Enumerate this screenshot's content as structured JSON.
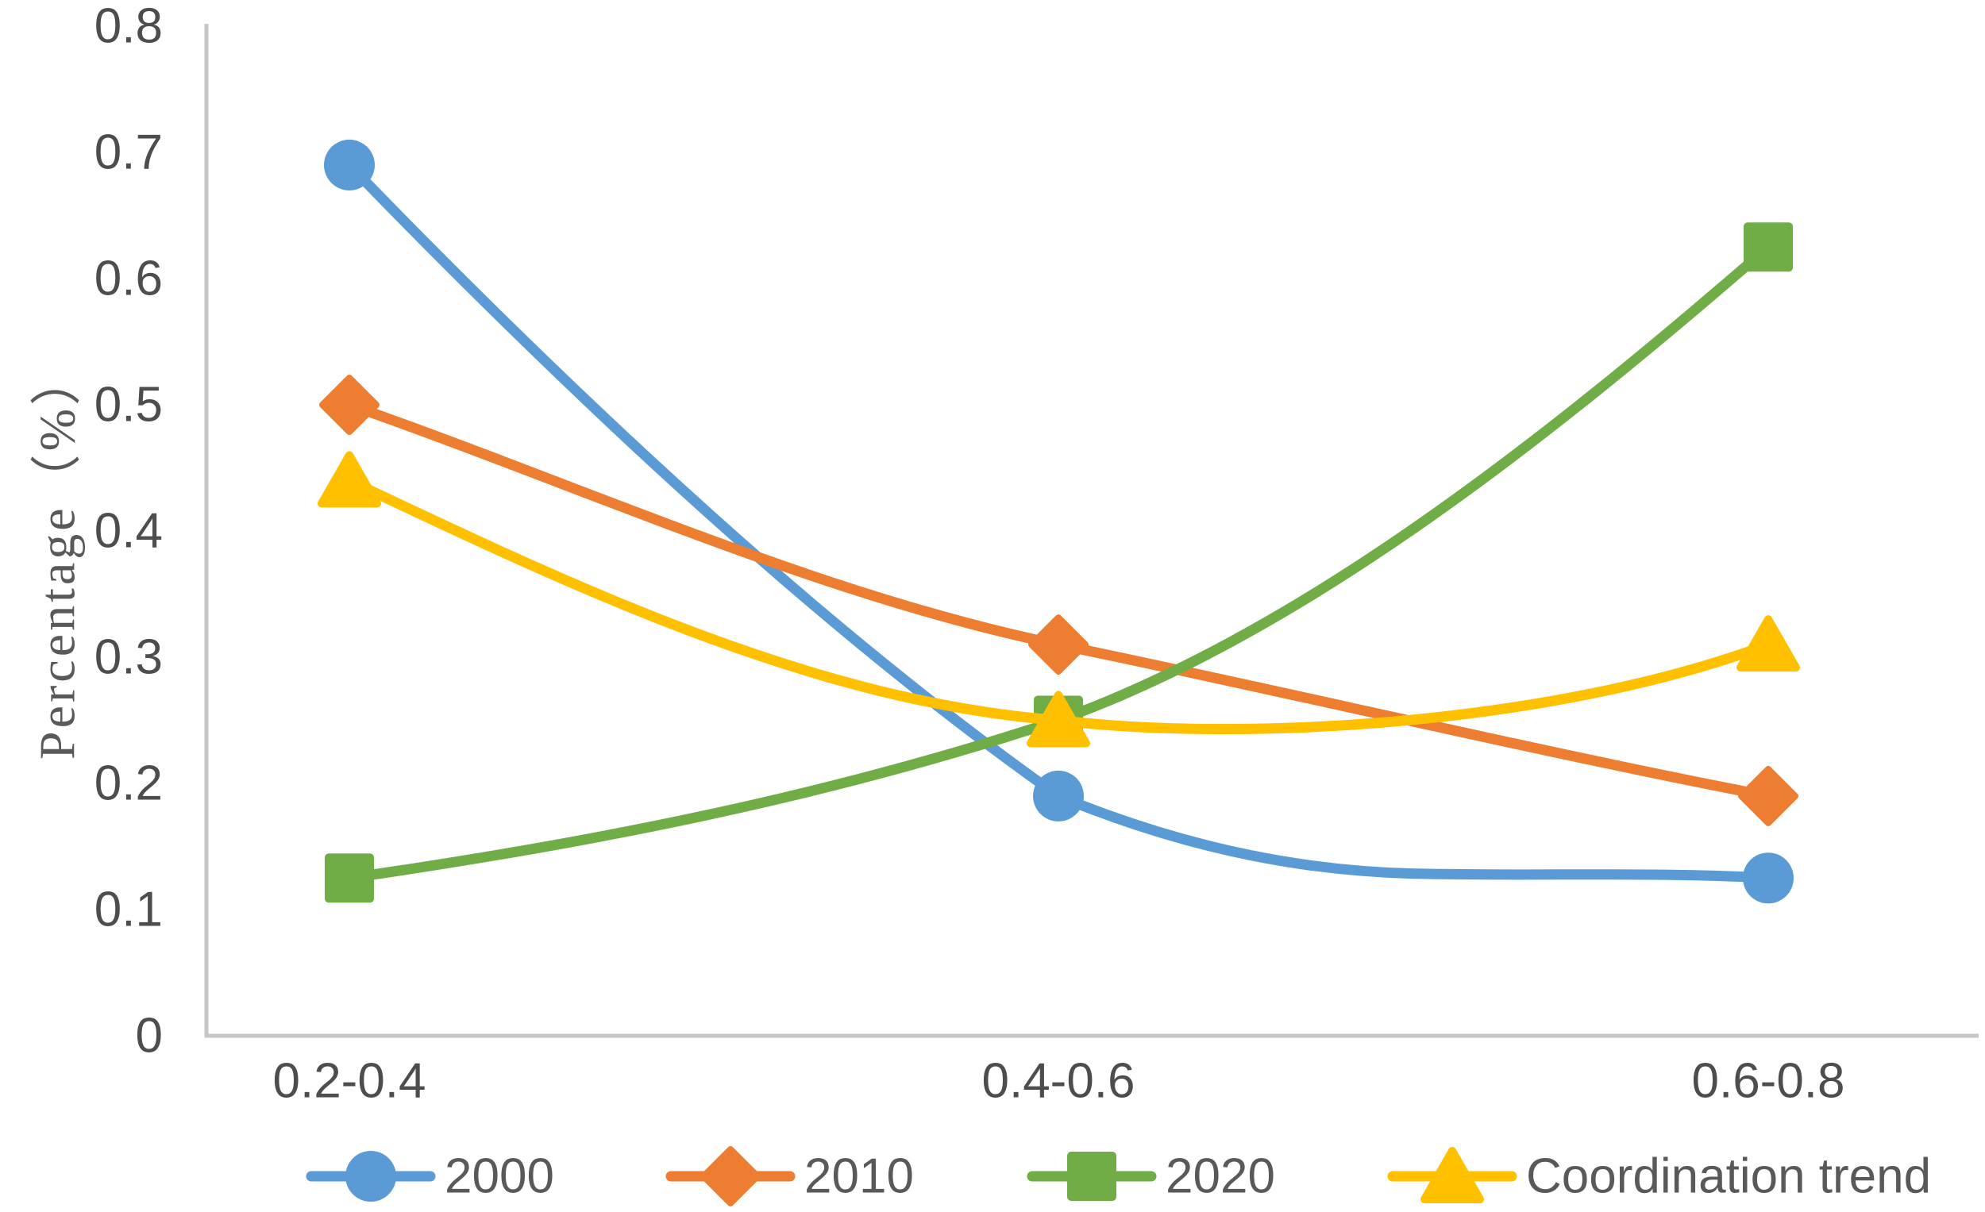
{
  "chart_data": {
    "type": "line",
    "title": "",
    "categories": [
      "0.2-0.4",
      "0.4-0.6",
      "0.6-0.8"
    ],
    "series": [
      {
        "name": "2000",
        "marker": "circle",
        "color": "#5B9BD5",
        "values": [
          0.69,
          0.19,
          0.125
        ]
      },
      {
        "name": "2010",
        "marker": "diamond",
        "color": "#ED7D31",
        "values": [
          0.5,
          0.31,
          0.19
        ]
      },
      {
        "name": "2020",
        "marker": "square",
        "color": "#70AD47",
        "values": [
          0.125,
          0.25,
          0.625
        ]
      },
      {
        "name": "Coordination trend",
        "marker": "triangle",
        "color": "#FFC000",
        "values": [
          0.44,
          0.25,
          0.31
        ]
      }
    ],
    "xlabel": "",
    "ylabel": "Percentage（%）",
    "ylim": [
      0,
      0.8
    ],
    "yticks": [
      0,
      0.1,
      0.2,
      0.3,
      0.4,
      0.5,
      0.6,
      0.7,
      0.8
    ],
    "ytick_labels": [
      "0",
      "0.1",
      "0.2",
      "0.3",
      "0.4",
      "0.5",
      "0.6",
      "0.7",
      "0.8"
    ],
    "grid": false,
    "line_smoothing": true,
    "legend_position": "bottom",
    "axis_color": "#C6C6C6",
    "tick_text_color": "#4D4D4D",
    "legend_text_color": "#595959",
    "y_title_color": "#595959"
  }
}
